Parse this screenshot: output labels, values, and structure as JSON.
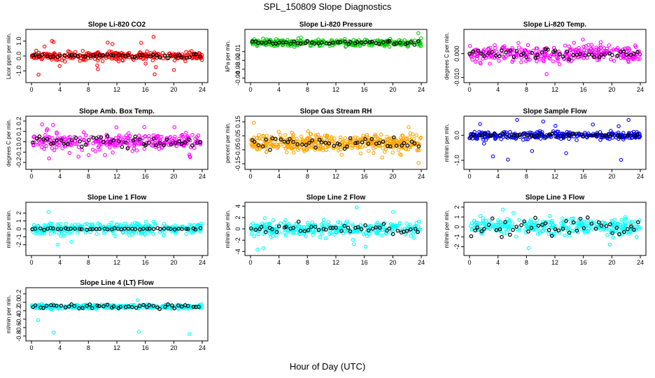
{
  "figure": {
    "title": "SPL_150809  Slope Diagnostics",
    "xlabel": "Hour of Day (UTC)"
  },
  "chart_data": [
    {
      "type": "scatter",
      "title": "Slope Li-820 CO2",
      "ylabel": "Licor ppm per min.",
      "xlim": [
        0,
        24
      ],
      "ylim": [
        -1.6,
        1.6
      ],
      "yticks": [
        "-1.0",
        "0.0",
        "1.0"
      ],
      "ytick_values": [
        -1.0,
        0.0,
        1.0
      ],
      "xticks": [
        0,
        4,
        8,
        12,
        16,
        20,
        24
      ],
      "color": "#ff0000",
      "spread": 0.28,
      "outlier_rate": 0.05,
      "outlier_range": 1.3,
      "black_spread": 0.12,
      "seed": 11
    },
    {
      "type": "scatter",
      "title": "Slope Li-820 Pressure",
      "ylabel": "kPa per min.",
      "xlim": [
        0,
        24
      ],
      "ylim": [
        -0.042,
        0.012
      ],
      "yticks": [
        "-0.04",
        "-0.03",
        "-0.02",
        "-0.01"
      ],
      "ytick_values": [
        -0.04,
        -0.03,
        -0.02,
        -0.01
      ],
      "xticks": [
        0,
        4,
        8,
        12,
        16,
        20,
        24
      ],
      "color": "#00cc00",
      "center": 0.0,
      "spread": 0.004,
      "outlier_rate": 0.02,
      "outlier_range": 0.03,
      "black_spread": 0.002,
      "seed": 23
    },
    {
      "type": "scatter",
      "title": "Slope Li-820 Temp.",
      "ylabel": "degrees C per min.",
      "xlim": [
        0,
        24
      ],
      "ylim": [
        -0.011,
        0.009
      ],
      "yticks": [
        "-0.010",
        "0.000"
      ],
      "ytick_values": [
        -0.01,
        0.0
      ],
      "xticks": [
        0,
        4,
        8,
        12,
        16,
        20,
        24
      ],
      "color": "#ff00ff",
      "spread": 0.0035,
      "outlier_rate": 0.02,
      "outlier_range": 0.009,
      "black_spread": 0.002,
      "seed": 37
    },
    {
      "type": "scatter",
      "title": "Slope Amb. Box Temp.",
      "ylabel": "degrees C per min.",
      "xlim": [
        0,
        24
      ],
      "ylim": [
        -0.24,
        0.22
      ],
      "yticks": [
        "-0.2",
        "-0.1",
        "0.0",
        "0.1",
        "0.2"
      ],
      "ytick_values": [
        -0.2,
        -0.1,
        0.0,
        0.1,
        0.2
      ],
      "xticks": [
        0,
        4,
        8,
        12,
        16,
        20,
        24
      ],
      "color": "#ff00ff",
      "spread": 0.07,
      "outlier_rate": 0.03,
      "outlier_range": 0.2,
      "black_spread": 0.05,
      "seed": 41
    },
    {
      "type": "scatter",
      "title": "Slope Gas Stream RH",
      "ylabel": "percent per min.",
      "xlim": [
        0,
        24
      ],
      "ylim": [
        -0.17,
        0.17
      ],
      "yticks": [
        "-0.15",
        "-0.05",
        "0.05",
        "0.15"
      ],
      "ytick_values": [
        -0.15,
        -0.05,
        0.05,
        0.15
      ],
      "xticks": [
        0,
        4,
        8,
        12,
        16,
        20,
        24
      ],
      "color": "#ffa500",
      "spread": 0.06,
      "outlier_rate": 0.03,
      "outlier_range": 0.15,
      "black_spread": 0.04,
      "seed": 53,
      "dense": true
    },
    {
      "type": "scatter",
      "title": "Slope Sample Flow",
      "ylabel": "ml/min per min.",
      "xlim": [
        0,
        24
      ],
      "ylim": [
        -1.25,
        0.65
      ],
      "yticks": [
        "-1.0",
        "0.0"
      ],
      "ytick_values": [
        -1.0,
        0.0
      ],
      "xticks": [
        0,
        4,
        8,
        12,
        16,
        20,
        24
      ],
      "color": "#0000ff",
      "spread": 0.15,
      "outlier_rate": 0.03,
      "outlier_range": 1.0,
      "black_spread": 0.08,
      "seed": 67
    },
    {
      "type": "scatter",
      "title": "Slope Line 1 Flow",
      "ylabel": "ml/min per min.",
      "xlim": [
        0,
        24
      ],
      "ylim": [
        -3.0,
        3.0
      ],
      "yticks": [
        "-2",
        "-1",
        "0",
        "1",
        "2"
      ],
      "ytick_values": [
        -2,
        -1,
        0,
        1,
        2
      ],
      "xticks": [
        0,
        4,
        8,
        12,
        16,
        20,
        24
      ],
      "color": "#00ffff",
      "spread": 0.7,
      "outlier_rate": 0.03,
      "outlier_range": 2.8,
      "black_spread": 0.12,
      "seed": 71
    },
    {
      "type": "scatter",
      "title": "Slope Line 2 Flow",
      "ylabel": "ml/min per min.",
      "xlim": [
        0,
        24
      ],
      "ylim": [
        -4.2,
        4.2
      ],
      "yticks": [
        "-4",
        "-2",
        "0",
        "2",
        "4"
      ],
      "ytick_values": [
        -4,
        -2,
        0,
        2,
        4
      ],
      "xticks": [
        0,
        4,
        8,
        12,
        16,
        20,
        24
      ],
      "color": "#00ffff",
      "spread": 1.2,
      "outlier_rate": 0.04,
      "outlier_range": 3.8,
      "black_spread": 1.0,
      "seed": 83
    },
    {
      "type": "scatter",
      "title": "Slope Line 3 Flow",
      "ylabel": "ml/min per min.",
      "xlim": [
        0,
        24
      ],
      "ylim": [
        -2.6,
        2.2
      ],
      "yticks": [
        "-2",
        "-1",
        "0",
        "1",
        "2"
      ],
      "ytick_values": [
        -2,
        -1,
        0,
        1,
        2
      ],
      "xticks": [
        0,
        4,
        8,
        12,
        16,
        20,
        24
      ],
      "color": "#00ffff",
      "spread": 0.8,
      "outlier_rate": 0.03,
      "outlier_range": 2.2,
      "black_spread": 0.9,
      "seed": 97
    },
    {
      "type": "scatter",
      "title": "Slope Line 4 (LT) Flow",
      "ylabel": "ml/min per min.",
      "xlim": [
        0,
        24
      ],
      "ylim": [
        -0.85,
        0.28
      ],
      "yticks": [
        "-0.8",
        "-0.6",
        "-0.4",
        "-0.2",
        "0.0",
        "0.2"
      ],
      "ytick_values": [
        -0.8,
        -0.6,
        -0.4,
        -0.2,
        0.0,
        0.2
      ],
      "xticks": [
        0,
        4,
        8,
        12,
        16,
        20,
        24
      ],
      "color": "#00ffff",
      "center": -0.1,
      "spread": 0.05,
      "outlier_rate": 0.01,
      "outlier_range": 0.7,
      "black_spread": 0.05,
      "seed": 101
    }
  ]
}
